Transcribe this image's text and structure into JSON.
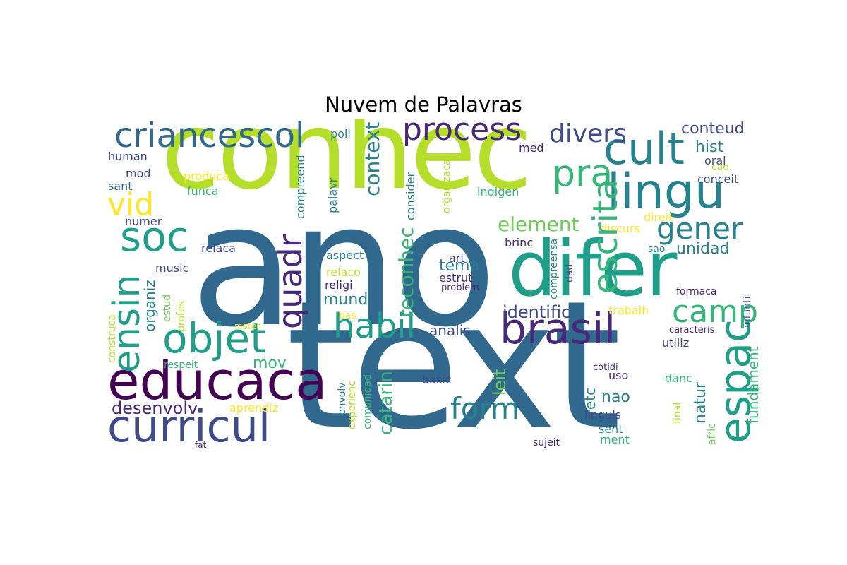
{
  "title": "Nuvem de Palavras",
  "colors": {
    "dark_purple": "#440154",
    "indigo": "#482878",
    "blue_purple": "#3e4a89",
    "blue": "#31688e",
    "teal_blue": "#26828e",
    "teal": "#1f9e89",
    "green": "#35b779",
    "lime": "#6ece58",
    "yellow_green": "#b5de2b",
    "yellow": "#fde725"
  },
  "words": [
    {
      "id": "ano",
      "text": "ano"
    },
    {
      "id": "text",
      "text": "text"
    },
    {
      "id": "conhec",
      "text": "conhec"
    },
    {
      "id": "difer",
      "text": "difer"
    },
    {
      "id": "educaca",
      "text": "educaca"
    },
    {
      "id": "curricul",
      "text": "curricul"
    },
    {
      "id": "lingu",
      "text": "lingu"
    },
    {
      "id": "cult",
      "text": "cult"
    },
    {
      "id": "brasil",
      "text": "brasil"
    },
    {
      "id": "criancescol",
      "text": "criancescol"
    },
    {
      "id": "objet",
      "text": "objet"
    },
    {
      "id": "soc",
      "text": "soc"
    },
    {
      "id": "process",
      "text": "process"
    },
    {
      "id": "habil",
      "text": "habil"
    },
    {
      "id": "espac",
      "text": "espac"
    },
    {
      "id": "ensin",
      "text": "ensin"
    },
    {
      "id": "escrita",
      "text": "escrita"
    },
    {
      "id": "gener",
      "text": "gener"
    },
    {
      "id": "camp",
      "text": "camp"
    },
    {
      "id": "divers",
      "text": "divers"
    },
    {
      "id": "form",
      "text": "form"
    },
    {
      "id": "pra",
      "text": "pra"
    },
    {
      "id": "vid",
      "text": "vid"
    },
    {
      "id": "quadr",
      "text": "quadr"
    },
    {
      "id": "element",
      "text": "element"
    },
    {
      "id": "context",
      "text": "context"
    },
    {
      "id": "reconhec",
      "text": "reconhec"
    },
    {
      "id": "desenvolv",
      "text": "desenvolv"
    },
    {
      "id": "identific",
      "text": "identific"
    },
    {
      "id": "conteud",
      "text": "conteud"
    },
    {
      "id": "hist",
      "text": "hist"
    },
    {
      "id": "unidad",
      "text": "unidad"
    },
    {
      "id": "tema",
      "text": "tema"
    },
    {
      "id": "mund",
      "text": "mund"
    },
    {
      "id": "analis",
      "text": "analis"
    },
    {
      "id": "mov",
      "text": "mov"
    },
    {
      "id": "catarin",
      "text": "catarin"
    },
    {
      "id": "nao",
      "text": "nao"
    },
    {
      "id": "natur",
      "text": "natur"
    },
    {
      "id": "leit",
      "text": "leit"
    },
    {
      "id": "fundament",
      "text": "fundament"
    },
    {
      "id": "organiz",
      "text": "organiz"
    },
    {
      "id": "compreend",
      "text": "compreend"
    },
    {
      "id": "etc",
      "text": "etc"
    },
    {
      "id": "human",
      "text": "human"
    },
    {
      "id": "mod",
      "text": "mod"
    },
    {
      "id": "sant",
      "text": "sant"
    },
    {
      "id": "numer",
      "text": "numer"
    },
    {
      "id": "poli",
      "text": "poli"
    },
    {
      "id": "produca",
      "text": "produca"
    },
    {
      "id": "funca",
      "text": "funca"
    },
    {
      "id": "palavr",
      "text": "palavr"
    },
    {
      "id": "consider",
      "text": "consider"
    },
    {
      "id": "organizaca",
      "text": "organizaca"
    },
    {
      "id": "indigen",
      "text": "indigen"
    },
    {
      "id": "med",
      "text": "med"
    },
    {
      "id": "oral",
      "text": "oral"
    },
    {
      "id": "cao",
      "text": "cao"
    },
    {
      "id": "conceit",
      "text": "conceit"
    },
    {
      "id": "relaca",
      "text": "relaca"
    },
    {
      "id": "music",
      "text": "music"
    },
    {
      "id": "aspect",
      "text": "aspect"
    },
    {
      "id": "relaco",
      "text": "relaco"
    },
    {
      "id": "religi",
      "text": "religi"
    },
    {
      "id": "art",
      "text": "art"
    },
    {
      "id": "estrut",
      "text": "estrut"
    },
    {
      "id": "problem",
      "text": "problem"
    },
    {
      "id": "brinc",
      "text": "brinc"
    },
    {
      "id": "compreensa",
      "text": "compreensa"
    },
    {
      "id": "dad",
      "text": "dad"
    },
    {
      "id": "sao",
      "text": "sao"
    },
    {
      "id": "direit",
      "text": "direit"
    },
    {
      "id": "discurs",
      "text": "discurs"
    },
    {
      "id": "formaca",
      "text": "formaca"
    },
    {
      "id": "infantil",
      "text": "infantil"
    },
    {
      "id": "construca",
      "text": "construca"
    },
    {
      "id": "estud",
      "text": "estud"
    },
    {
      "id": "profes",
      "text": "profes"
    },
    {
      "id": "mater",
      "text": "mater"
    },
    {
      "id": "bas",
      "text": "bas"
    },
    {
      "id": "trabalh",
      "text": "trabalh"
    },
    {
      "id": "caracteris",
      "text": "caracteris"
    },
    {
      "id": "utiliz",
      "text": "utiliz"
    },
    {
      "id": "respeit",
      "text": "respeit"
    },
    {
      "id": "envolv",
      "text": "envolv"
    },
    {
      "id": "experienc",
      "text": "experienc"
    },
    {
      "id": "comunidad",
      "text": "comunidad"
    },
    {
      "id": "basic",
      "text": "basic"
    },
    {
      "id": "cotidi",
      "text": "cotidi"
    },
    {
      "id": "uso",
      "text": "uso"
    },
    {
      "id": "danc",
      "text": "danc"
    },
    {
      "id": "linguis",
      "text": "linguis"
    },
    {
      "id": "final",
      "text": "final"
    },
    {
      "id": "afric",
      "text": "afric"
    },
    {
      "id": "sent",
      "text": "sent"
    },
    {
      "id": "ment",
      "text": "ment"
    },
    {
      "id": "aprendiz",
      "text": "aprendiz"
    },
    {
      "id": "fat",
      "text": "fat"
    },
    {
      "id": "sujeit",
      "text": "sujeit"
    }
  ]
}
